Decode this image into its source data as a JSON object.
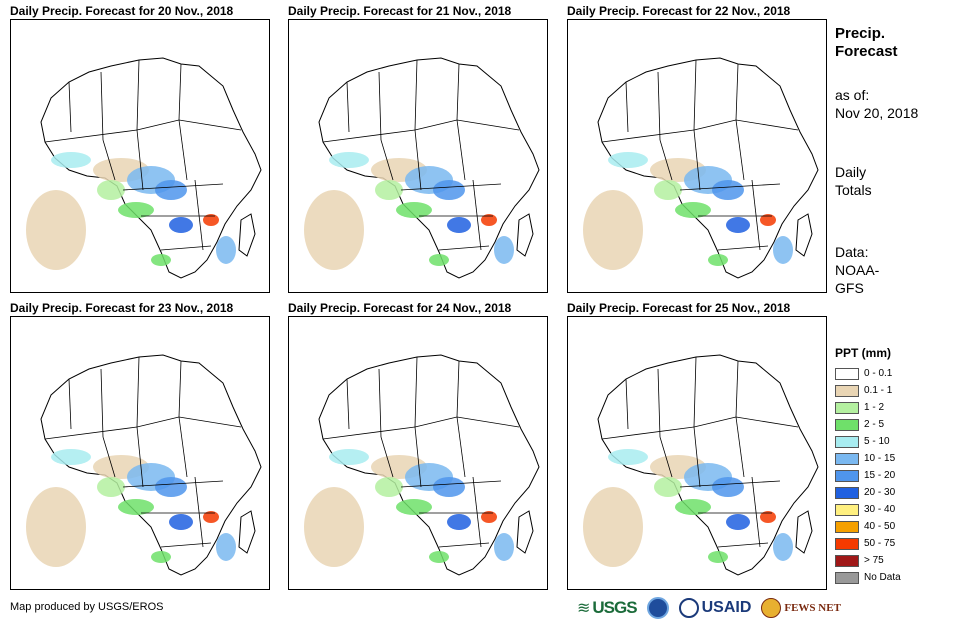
{
  "panels": [
    {
      "title": "Daily Precip. Forecast for 20 Nov., 2018"
    },
    {
      "title": "Daily Precip. Forecast for 21 Nov., 2018"
    },
    {
      "title": "Daily Precip. Forecast for 22 Nov., 2018"
    },
    {
      "title": "Daily Precip. Forecast for 23 Nov., 2018"
    },
    {
      "title": "Daily Precip. Forecast for 24 Nov., 2018"
    },
    {
      "title": "Daily Precip. Forecast for 25 Nov., 2018"
    }
  ],
  "side": {
    "title_line1": "Precip.",
    "title_line2": "Forecast",
    "asof_label": "as of:",
    "asof_date": "Nov 20, 2018",
    "totals_line1": "Daily",
    "totals_line2": "Totals",
    "data_line1": "Data:",
    "data_line2": "NOAA-",
    "data_line3": "GFS"
  },
  "legend": {
    "title": "PPT (mm)",
    "items": [
      {
        "label": "0 - 0.1",
        "color": "#ffffff"
      },
      {
        "label": "0.1 - 1",
        "color": "#e9d5b4"
      },
      {
        "label": "1 - 2",
        "color": "#b4f0a0"
      },
      {
        "label": "2 - 5",
        "color": "#6fe06a"
      },
      {
        "label": "5 - 10",
        "color": "#a8ecf0"
      },
      {
        "label": "10 - 15",
        "color": "#7ab8f0"
      },
      {
        "label": "15 - 20",
        "color": "#4f95ec"
      },
      {
        "label": "20 - 30",
        "color": "#2060e0"
      },
      {
        "label": "30 - 40",
        "color": "#fff080"
      },
      {
        "label": "40 - 50",
        "color": "#f5a000"
      },
      {
        "label": "50 - 75",
        "color": "#f53a00"
      },
      {
        "label": "> 75",
        "color": "#a01818"
      },
      {
        "label": "No Data",
        "color": "#999999"
      }
    ]
  },
  "footer": {
    "credit": "Map produced by USGS/EROS",
    "usgs_text": "USGS",
    "usaid_text": "USAID",
    "fews_text": "FEWS NET"
  }
}
